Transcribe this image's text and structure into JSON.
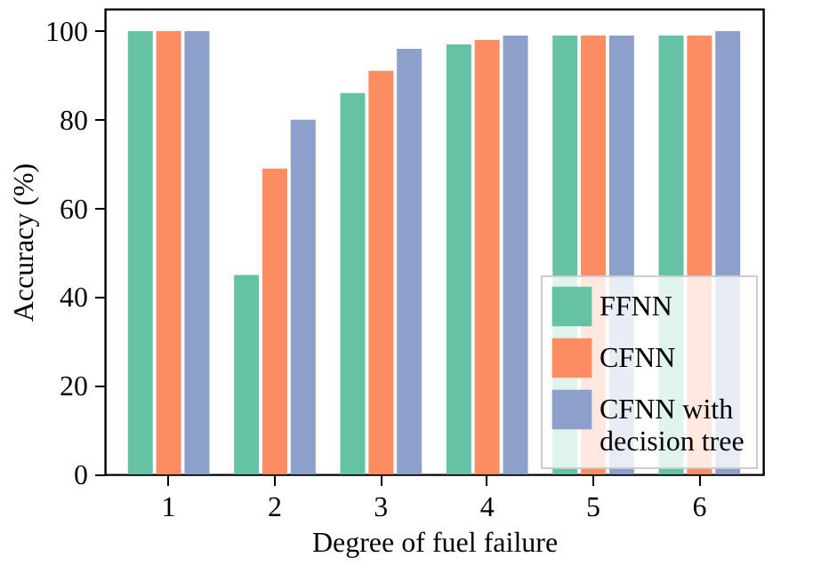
{
  "chart_data": {
    "type": "bar",
    "xlabel": "Degree of fuel failure",
    "ylabel": "Accuracy (%)",
    "categories": [
      "1",
      "2",
      "3",
      "4",
      "5",
      "6"
    ],
    "series": [
      {
        "name": "FFNN",
        "color": "#66c2a5",
        "values": [
          100,
          45,
          86,
          97,
          99,
          99
        ]
      },
      {
        "name": "CFNN",
        "color": "#fc8d62",
        "values": [
          100,
          69,
          91,
          98,
          99,
          99
        ]
      },
      {
        "name": "CFNN with\ndecision tree",
        "color": "#8da0cb",
        "values": [
          100,
          80,
          96,
          99,
          99,
          100
        ]
      }
    ],
    "ylim": [
      0,
      105
    ],
    "yticks": [
      0,
      20,
      40,
      60,
      80,
      100
    ],
    "grid": false,
    "legend": "bottom right"
  }
}
